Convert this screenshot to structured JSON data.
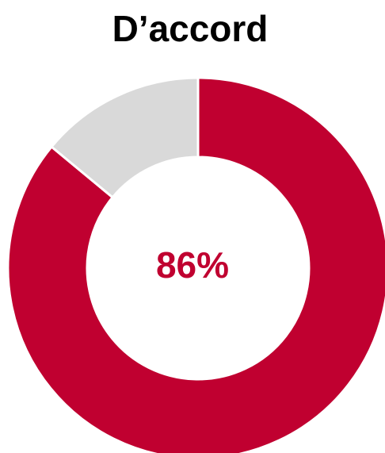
{
  "chart_data": {
    "type": "donut",
    "title": "D’accord",
    "values": [
      86,
      14
    ],
    "colors": [
      "#c00030",
      "#d9d9d9"
    ],
    "value_labels": [
      "86%",
      null
    ]
  }
}
